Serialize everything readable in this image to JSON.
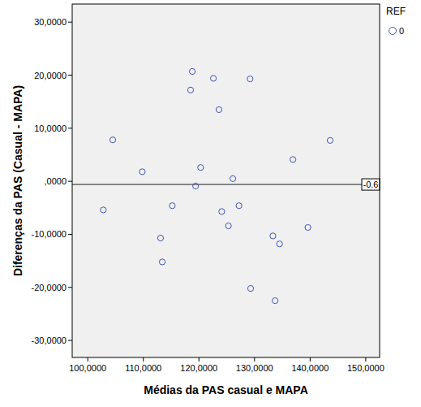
{
  "chart_data": {
    "type": "scatter",
    "x_label": "Médias da PAS casual e MAPA",
    "y_label": "Diferenças da PAS (Casual - MAPA)",
    "legend_title": "REF",
    "legend": "top-right",
    "marker": "circle-open",
    "reference_line": {
      "value": -0.6,
      "label": "-0.6"
    },
    "x": [
      104.5,
      102.8,
      109.8,
      113.1,
      113.4,
      115.2,
      118.5,
      118.8,
      119.4,
      120.3,
      122.6,
      123.6,
      124.1,
      125.3,
      126.1,
      127.2,
      129.2,
      129.3,
      133.3,
      133.7,
      134.5,
      136.9,
      139.6,
      143.6
    ],
    "series": [
      {
        "name": "0",
        "color": "#4356b0",
        "values": [
          7.8,
          -5.4,
          1.8,
          -10.7,
          -15.2,
          -4.6,
          17.2,
          20.7,
          -0.9,
          2.6,
          19.4,
          13.5,
          -5.7,
          -8.4,
          0.5,
          -4.6,
          19.3,
          -20.2,
          -10.3,
          -22.5,
          -11.8,
          4.1,
          -8.7,
          7.7
        ]
      }
    ],
    "xlim": [
      97.2,
      152.5
    ],
    "ylim": [
      -33.2,
      33.4
    ],
    "xticks": [
      {
        "value": 100,
        "label": "100,0000"
      },
      {
        "value": 110,
        "label": "110,0000"
      },
      {
        "value": 120,
        "label": "120,0000"
      },
      {
        "value": 130,
        "label": "130,0000"
      },
      {
        "value": 140,
        "label": "140,0000"
      },
      {
        "value": 150,
        "label": "150,0000"
      }
    ],
    "yticks": [
      {
        "value": -30,
        "label": "-30,0000"
      },
      {
        "value": -20,
        "label": "-20,0000"
      },
      {
        "value": -10,
        "label": "-10,0000"
      },
      {
        "value": 0,
        "label": ",0000"
      },
      {
        "value": 10,
        "label": "10,0000"
      },
      {
        "value": 20,
        "label": "20,0000"
      },
      {
        "value": 30,
        "label": "30,0000"
      }
    ],
    "grid": false
  }
}
